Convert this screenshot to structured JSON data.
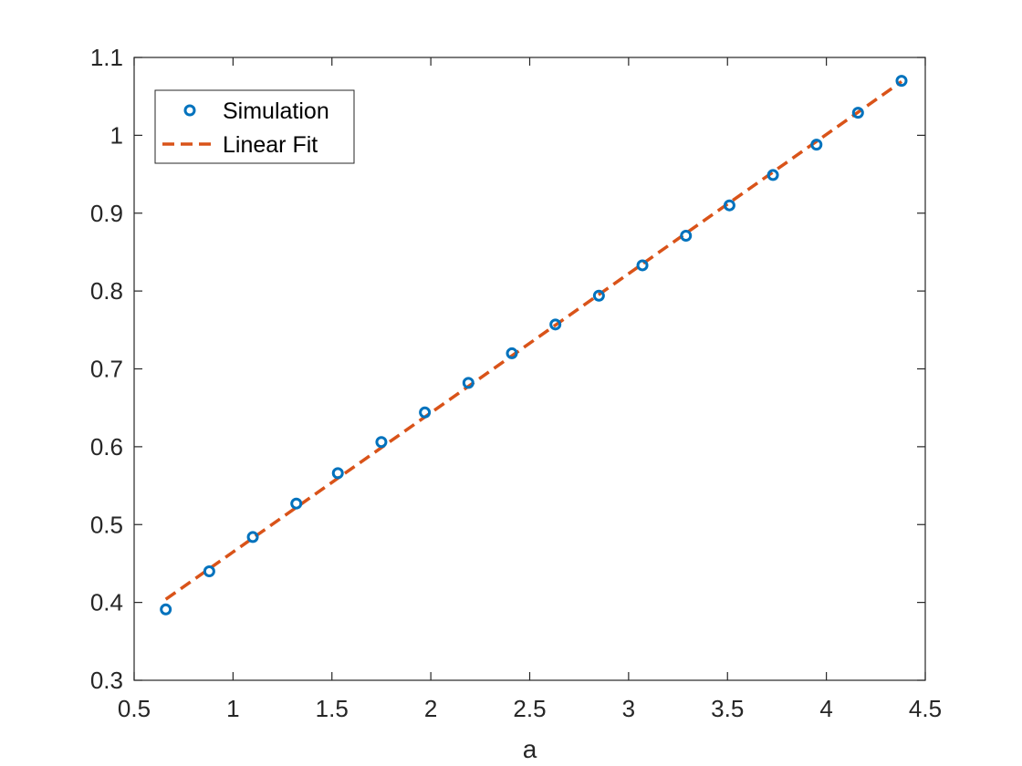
{
  "chart_data": {
    "type": "scatter",
    "title": "",
    "xlabel": "a",
    "ylabel": "",
    "xlim": [
      0.5,
      4.5
    ],
    "ylim": [
      0.3,
      1.1
    ],
    "xticks": [
      "0.5",
      "1",
      "1.5",
      "2",
      "2.5",
      "3",
      "3.5",
      "4",
      "4.5"
    ],
    "yticks": [
      "0.3",
      "0.4",
      "0.5",
      "0.6",
      "0.7",
      "0.8",
      "0.9",
      "1",
      "1.1"
    ],
    "grid": false,
    "box": true,
    "legend_position": "top-left",
    "series": [
      {
        "name": "Simulation",
        "style": "markers",
        "marker": "circle",
        "color": "#0072BD",
        "x": [
          0.66,
          0.88,
          1.1,
          1.32,
          1.53,
          1.75,
          1.97,
          2.19,
          2.41,
          2.63,
          2.85,
          3.07,
          3.29,
          3.51,
          3.73,
          3.95,
          4.16,
          4.38
        ],
        "y": [
          0.391,
          0.44,
          0.484,
          0.527,
          0.566,
          0.606,
          0.644,
          0.682,
          0.72,
          0.757,
          0.794,
          0.833,
          0.871,
          0.91,
          0.949,
          0.988,
          1.029,
          1.07
        ]
      },
      {
        "name": "Linear Fit",
        "style": "dashed-line",
        "color": "#D95319",
        "x": [
          0.66,
          4.38
        ],
        "y": [
          0.404,
          1.069
        ]
      }
    ]
  }
}
